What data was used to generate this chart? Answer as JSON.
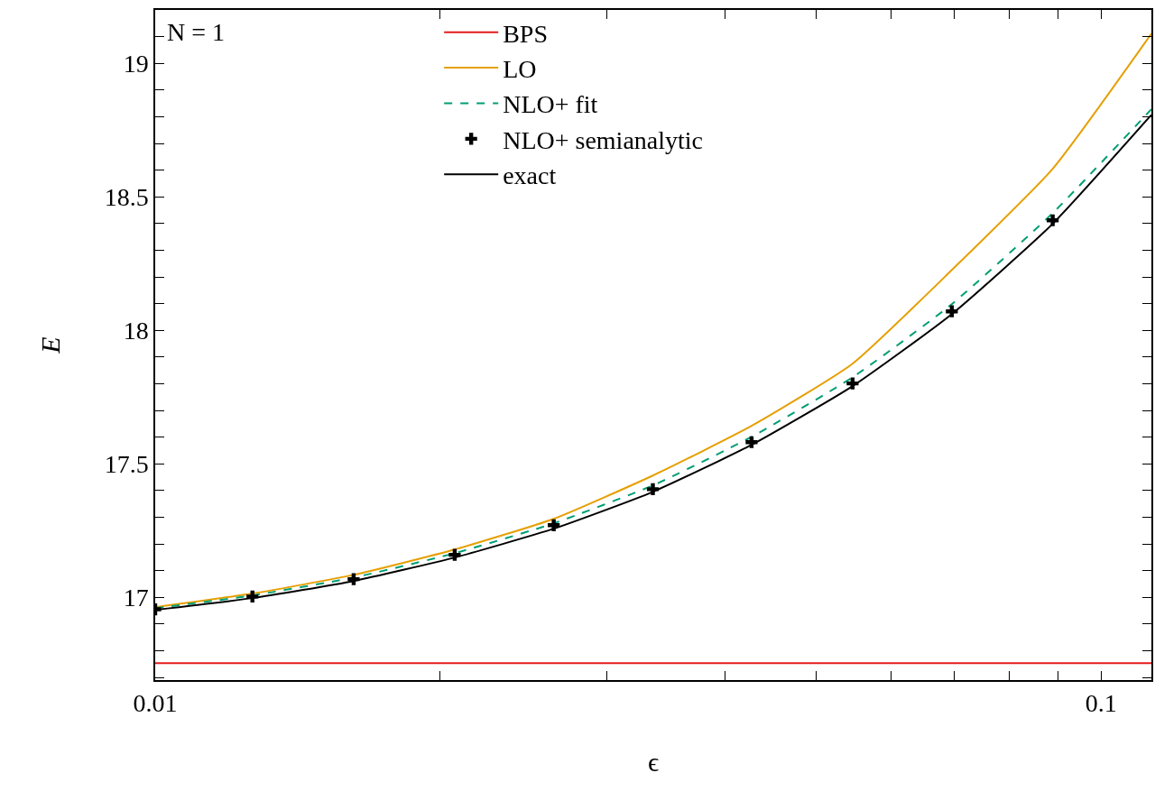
{
  "chart_data": {
    "type": "line",
    "xlabel": "ϵ",
    "ylabel": "E",
    "log": "x",
    "annotations": [
      "N = 1"
    ],
    "xlim": [
      0.01,
      0.113
    ],
    "ylim": [
      16.69,
      19.2
    ],
    "xticks": [
      0.01,
      {
        "value": 0.02,
        "label": null
      },
      {
        "value": 0.03,
        "label": null
      },
      {
        "value": 0.04,
        "label": null
      },
      {
        "value": 0.05,
        "label": null
      },
      {
        "value": 0.06,
        "label": null
      },
      {
        "value": 0.07,
        "label": null
      },
      {
        "value": 0.08,
        "label": null
      },
      {
        "value": 0.09,
        "label": null
      },
      0.1
    ],
    "yticks": [
      {
        "value": 16.7,
        "label": null
      },
      {
        "value": 16.8,
        "label": null
      },
      {
        "value": 16.9,
        "label": null
      },
      17,
      {
        "value": 17.1,
        "label": null
      },
      {
        "value": 17.2,
        "label": null
      },
      {
        "value": 17.3,
        "label": null
      },
      {
        "value": 17.4,
        "label": null
      },
      17.5,
      {
        "value": 17.6,
        "label": null
      },
      {
        "value": 17.7,
        "label": null
      },
      {
        "value": 17.8,
        "label": null
      },
      {
        "value": 17.9,
        "label": null
      },
      18,
      {
        "value": 18.1,
        "label": null
      },
      {
        "value": 18.2,
        "label": null
      },
      {
        "value": 18.3,
        "label": null
      },
      {
        "value": 18.4,
        "label": null
      },
      18.5,
      {
        "value": 18.6,
        "label": null
      },
      {
        "value": 18.7,
        "label": null
      },
      {
        "value": 18.8,
        "label": null
      },
      {
        "value": 18.9,
        "label": null
      },
      19,
      {
        "value": 19.1,
        "label": null
      }
    ],
    "legend": "top",
    "series": [
      {
        "name": "BPS",
        "color": "#e41a1c",
        "line_style": "solid",
        "x": [
          0.01,
          0.113
        ],
        "values": [
          16.753,
          16.753
        ]
      },
      {
        "name": "LO",
        "color": "#e69f00",
        "line_style": "solid",
        "x": [
          0.01,
          0.01267,
          0.01621,
          0.02073,
          0.02638,
          0.03358,
          0.0427,
          0.0546,
          0.06952,
          0.08887,
          0.113
        ],
        "values": [
          16.963,
          17.014,
          17.084,
          17.179,
          17.294,
          17.456,
          17.642,
          17.875,
          18.226,
          18.605,
          19.111
        ]
      },
      {
        "name": "NLO+ fit",
        "color": "#009e73",
        "line_style": "dashed",
        "x": [
          0.01,
          0.01267,
          0.01621,
          0.02073,
          0.02638,
          0.03358,
          0.0427,
          0.0546,
          0.06952,
          0.08887,
          0.113
        ],
        "values": [
          16.959,
          17.007,
          17.074,
          17.165,
          17.277,
          17.419,
          17.601,
          17.824,
          18.098,
          18.439,
          18.828
        ]
      },
      {
        "name": "NLO+ semianalytic",
        "color": "#000000",
        "type": "scatter",
        "marker": "cross",
        "x": [
          0.01,
          0.01267,
          0.01621,
          0.02073,
          0.02638,
          0.03358,
          0.0427,
          0.0546,
          0.06952,
          0.08887
        ],
        "values": [
          16.955,
          17.003,
          17.068,
          17.159,
          17.27,
          17.405,
          17.581,
          17.801,
          18.071,
          18.412
        ]
      },
      {
        "name": "exact",
        "color": "#000000",
        "line_style": "solid",
        "x": [
          0.01,
          0.01267,
          0.01621,
          0.02073,
          0.02638,
          0.03358,
          0.0427,
          0.0546,
          0.06952,
          0.08887,
          0.113
        ],
        "values": [
          16.953,
          16.997,
          17.061,
          17.149,
          17.257,
          17.395,
          17.571,
          17.791,
          18.061,
          18.399,
          18.807
        ]
      }
    ]
  }
}
